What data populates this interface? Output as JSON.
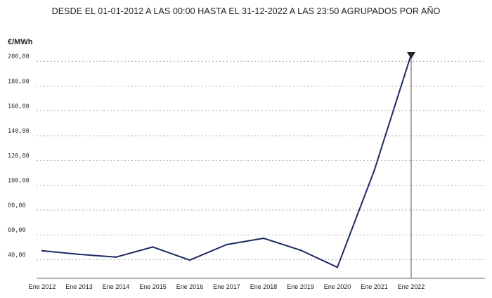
{
  "chart_data": {
    "type": "line",
    "title": "DESDE EL 01-01-2012 A LAS 00:00 HASTA EL 31-12-2022 A LAS 23:50 AGRUPADOS POR AÑO",
    "ylabel": "€/MWh",
    "xlabel": "",
    "categories": [
      "Ene 2012",
      "Ene 2013",
      "Ene 2014",
      "Ene 2015",
      "Ene 2016",
      "Ene 2017",
      "Ene 2018",
      "Ene 2019",
      "Ene 2020",
      "Ene 2021",
      "Ene 2022"
    ],
    "y_tick_labels": [
      "40,00",
      "60,00",
      "80,00",
      "100,00",
      "120,00",
      "140,00",
      "160,00",
      "180,00",
      "200,00"
    ],
    "y_ticks": [
      40,
      60,
      80,
      100,
      120,
      140,
      160,
      180,
      200
    ],
    "ylim": [
      25,
      212
    ],
    "grid": true,
    "series": [
      {
        "values": [
          47.2,
          44.3,
          42.1,
          50.3,
          39.7,
          52.2,
          57.3,
          47.7,
          33.9,
          111.9,
          205.5
        ],
        "color": "#1b2a63"
      }
    ],
    "cursor_category": "Ene 2022"
  }
}
